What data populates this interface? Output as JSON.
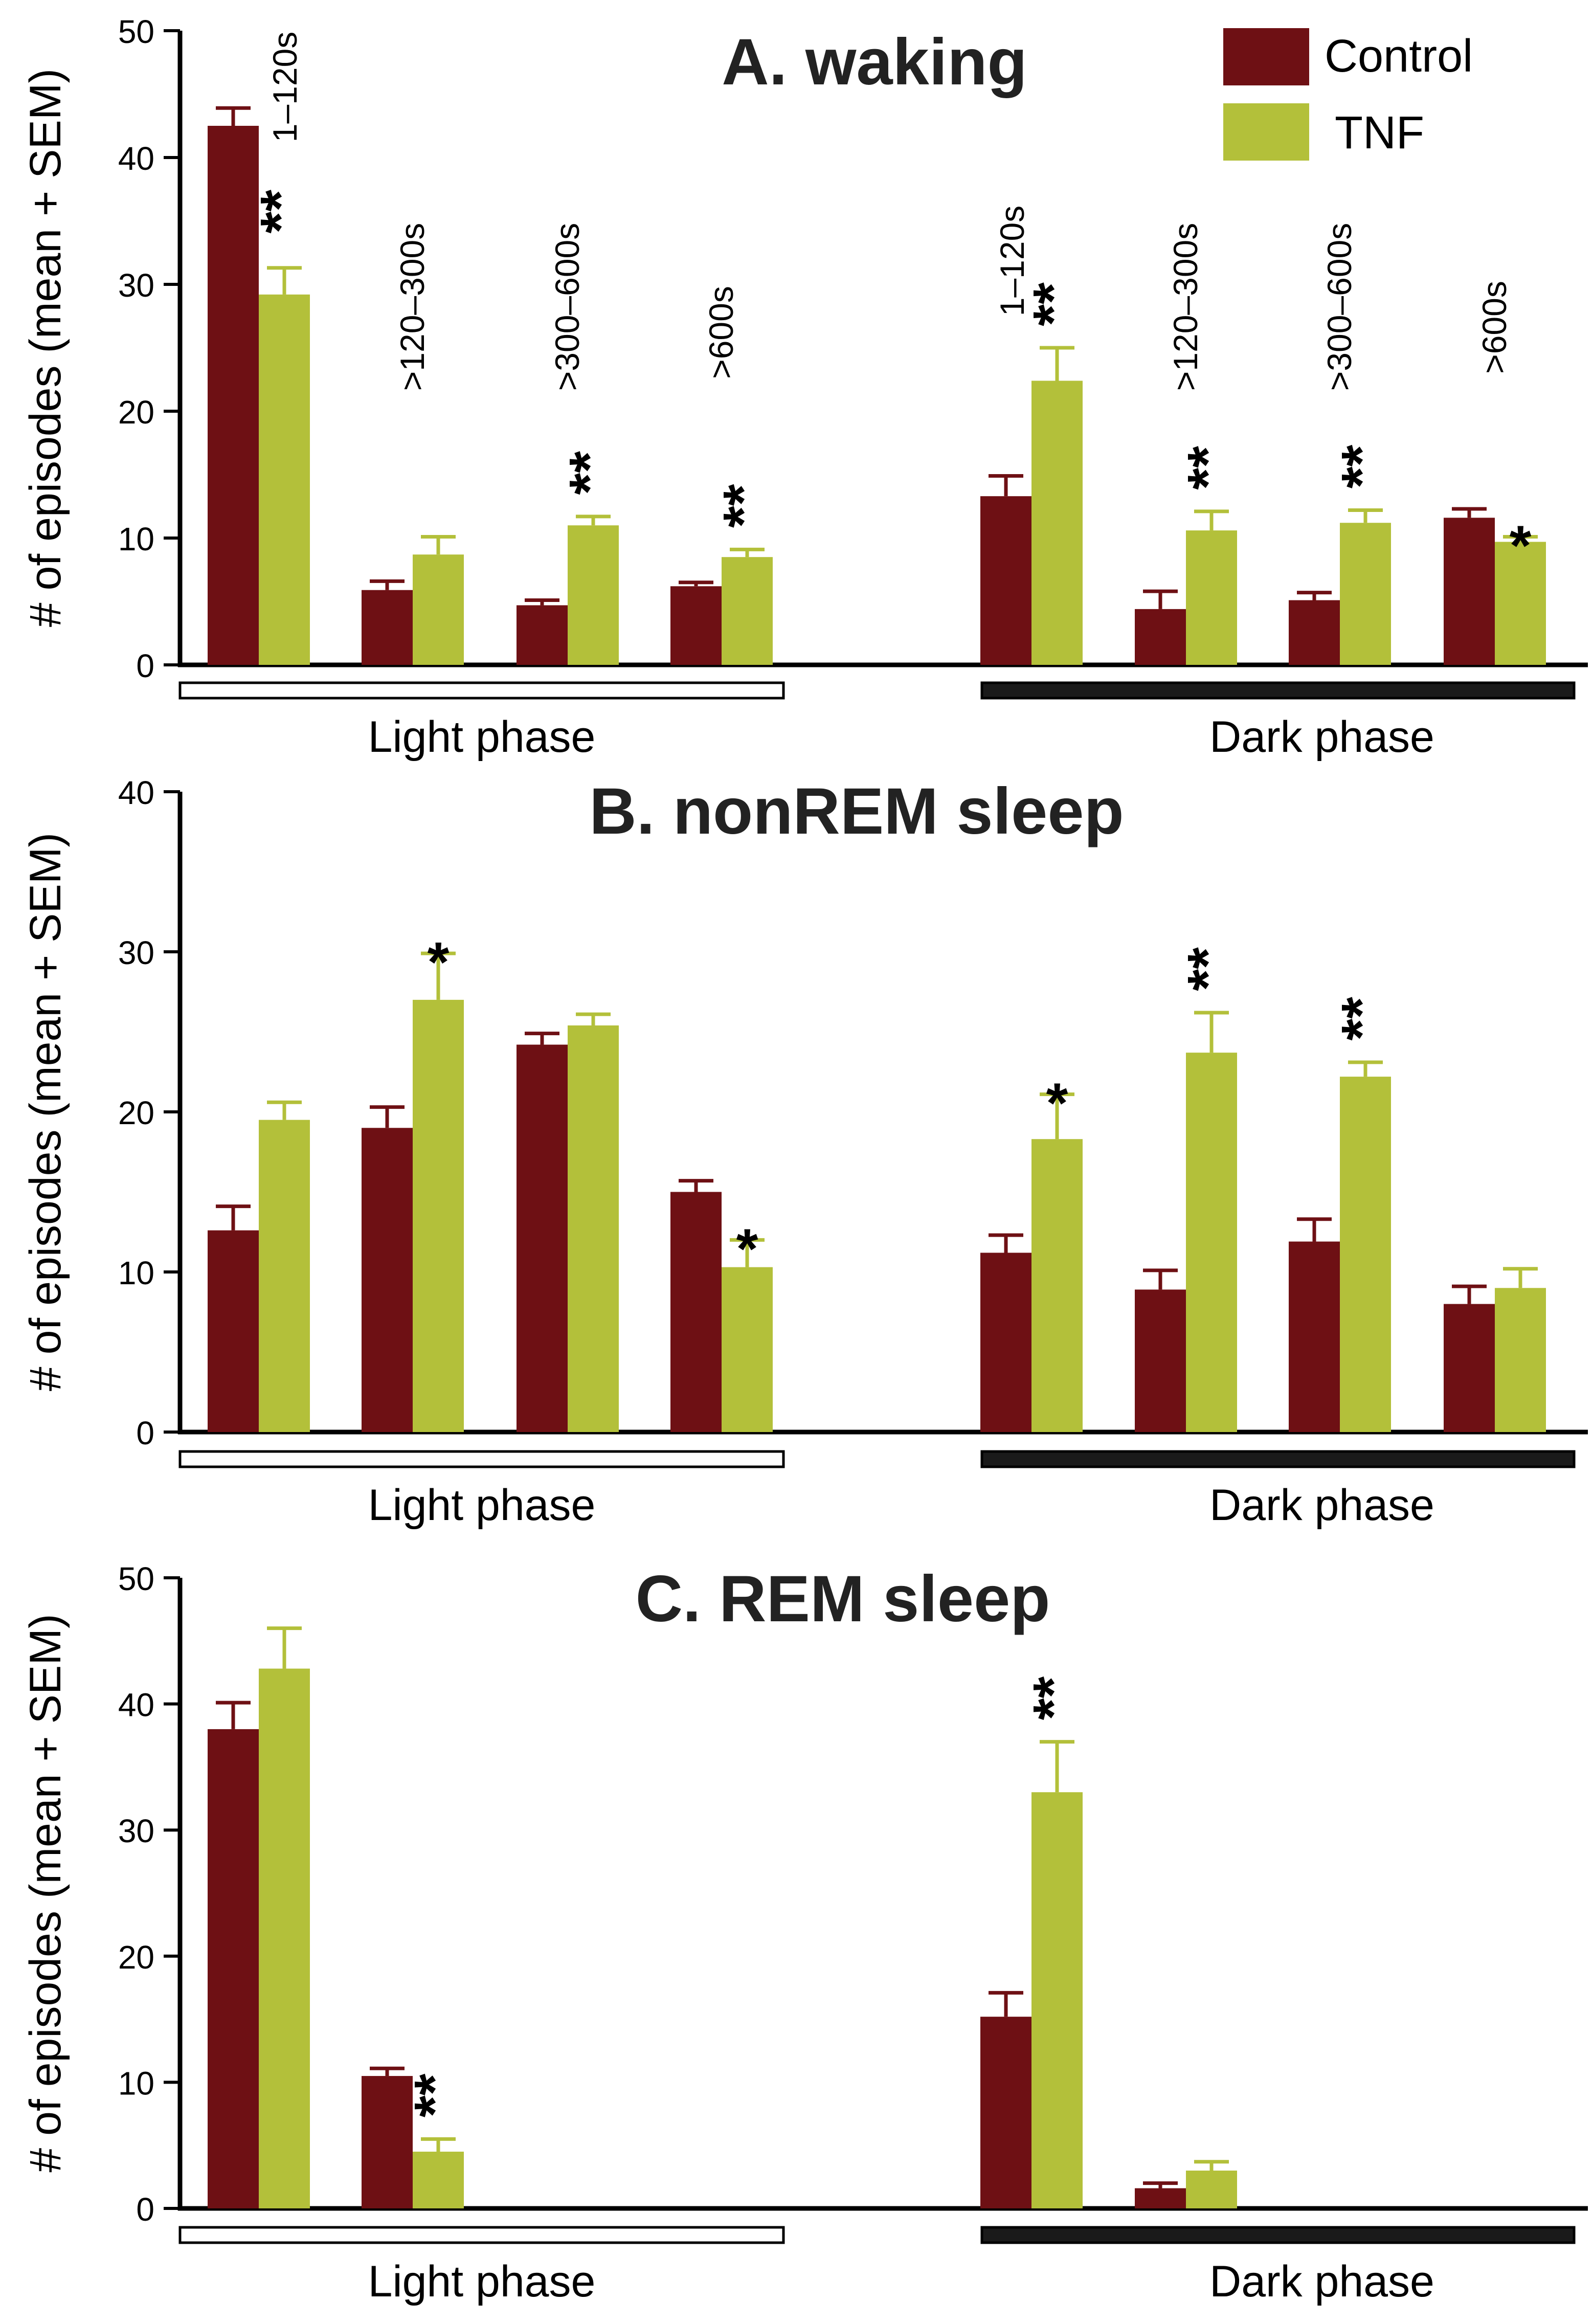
{
  "legend": {
    "items": [
      {
        "label": "Control",
        "color": "#6e1014"
      },
      {
        "label": "TNF",
        "color": "#b3c03a"
      }
    ]
  },
  "chart_data": [
    {
      "type": "bar",
      "title": "A. waking",
      "ylabel": "# of episodes (mean + SEM)",
      "ylim": [
        0,
        50
      ],
      "yticks": [
        0,
        10,
        20,
        30,
        40,
        50
      ],
      "phases": [
        "Light phase",
        "Dark phase"
      ],
      "categories": [
        "1–120s",
        ">120–300s",
        ">300–600s",
        ">600s",
        "1–120s",
        ">120–300s",
        ">300–600s",
        ">600s"
      ],
      "series": [
        {
          "name": "Control",
          "values": [
            42.5,
            5.9,
            4.7,
            6.2,
            13.3,
            4.4,
            5.1,
            11.6
          ],
          "errors": [
            1.4,
            0.7,
            0.4,
            0.3,
            1.6,
            1.4,
            0.6,
            0.7
          ]
        },
        {
          "name": "TNF",
          "values": [
            29.2,
            8.7,
            11.0,
            8.5,
            22.4,
            10.6,
            11.2,
            9.7
          ],
          "errors": [
            2.1,
            1.4,
            0.7,
            0.6,
            2.6,
            1.5,
            1.0,
            0.4
          ]
        }
      ],
      "significance": [
        "**",
        "",
        "**",
        "**",
        "**",
        "**",
        "**",
        "*"
      ]
    },
    {
      "type": "bar",
      "title": "B. nonREM sleep",
      "ylabel": "# of episodes (mean + SEM)",
      "ylim": [
        0,
        40
      ],
      "yticks": [
        0,
        10,
        20,
        30,
        40
      ],
      "phases": [
        "Light phase",
        "Dark phase"
      ],
      "series": [
        {
          "name": "Control",
          "values": [
            12.6,
            19.0,
            24.2,
            15.0,
            11.2,
            8.9,
            11.9,
            8.0
          ],
          "errors": [
            1.5,
            1.3,
            0.7,
            0.7,
            1.1,
            1.2,
            1.4,
            1.1
          ]
        },
        {
          "name": "TNF",
          "values": [
            19.5,
            27.0,
            25.4,
            10.3,
            18.3,
            23.7,
            22.2,
            9.0
          ],
          "errors": [
            1.1,
            2.9,
            0.7,
            1.7,
            2.8,
            2.5,
            0.9,
            1.2
          ]
        }
      ],
      "significance": [
        "",
        "*",
        "",
        "*",
        "*",
        "**",
        "**",
        ""
      ]
    },
    {
      "type": "bar",
      "title": "C. REM sleep",
      "ylabel": "# of episodes (mean + SEM)",
      "ylim": [
        0,
        50
      ],
      "yticks": [
        0,
        10,
        20,
        30,
        40,
        50
      ],
      "phases": [
        "Light phase",
        "Dark phase"
      ],
      "series": [
        {
          "name": "Control",
          "values": [
            38.0,
            10.5,
            null,
            null,
            15.2,
            1.6,
            null,
            null
          ],
          "errors": [
            2.1,
            0.6,
            0,
            0,
            1.9,
            0.4,
            0,
            0
          ]
        },
        {
          "name": "TNF",
          "values": [
            42.8,
            4.5,
            null,
            null,
            33.0,
            3.0,
            null,
            null
          ],
          "errors": [
            3.2,
            1.0,
            0,
            0,
            4.0,
            0.7,
            0,
            0
          ]
        }
      ],
      "significance": [
        "",
        "**",
        "",
        "",
        "**",
        "",
        "",
        ""
      ]
    }
  ]
}
